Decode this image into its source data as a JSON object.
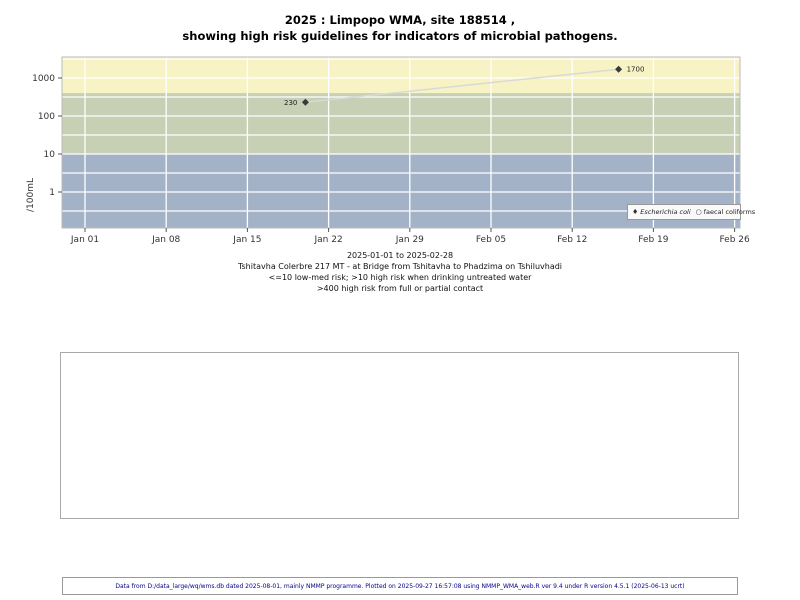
{
  "title": {
    "line1": "2025 : Limpopo WMA, site 188514 ,",
    "line2": "showing high risk guidelines for indicators of microbial pathogens."
  },
  "chart_data": {
    "type": "scatter",
    "title": "2025 : Limpopo WMA, site 188514 , showing high risk guidelines for indicators of microbial pathogens.",
    "xlabel": "",
    "ylabel": "/100mL",
    "y_scale": "log10",
    "y_ticks": [
      1,
      10,
      100,
      1000
    ],
    "y_domain": [
      0.11,
      3600
    ],
    "x_domain_dates": [
      "2024-12-30",
      "2025-02-26"
    ],
    "x_ticks": [
      {
        "label": "Jan 01",
        "day": 0
      },
      {
        "label": "Jan 08",
        "day": 7
      },
      {
        "label": "Jan 15",
        "day": 14
      },
      {
        "label": "Jan 22",
        "day": 21
      },
      {
        "label": "Jan 29",
        "day": 28
      },
      {
        "label": "Feb 05",
        "day": 35
      },
      {
        "label": "Feb 12",
        "day": 42
      },
      {
        "label": "Feb 19",
        "day": 49
      },
      {
        "label": "Feb 26",
        "day": 56
      }
    ],
    "gridlines_y": [
      0.316,
      1,
      3.16,
      10,
      31.6,
      100,
      316,
      1000,
      3162
    ],
    "grid_color": "#ffffff",
    "line_color": "#d9d9d9",
    "risk_bands": [
      {
        "name": "high-risk-contact",
        "from": 400,
        "to": 3600,
        "color": "#f7f3c4",
        "meaning": ">400 high risk from full or partial contact"
      },
      {
        "name": "high-risk-drinking",
        "from": 10,
        "to": 400,
        "color": "#c7cfb4",
        "meaning": ">10 high risk when drinking untreated water"
      },
      {
        "name": "low-med-risk",
        "from": 0.11,
        "to": 10,
        "color": "#a3b2c7",
        "meaning": "<=10 low-med risk"
      }
    ],
    "series": [
      {
        "name": "Escherichia coli",
        "marker": "diamond",
        "points": [
          {
            "date": "2025-01-20",
            "day": 19,
            "value": 230,
            "label": "230",
            "label_side": "left"
          },
          {
            "date": "2025-02-16",
            "day": 46,
            "value": 1700,
            "label": "1700",
            "label_side": "right"
          }
        ]
      },
      {
        "name": "faecal coliforms",
        "marker": "open-circle",
        "points": []
      }
    ],
    "legend_position": "bottom-right"
  },
  "legend": {
    "items": [
      {
        "glyph": "♦",
        "label": "Escherichia coli"
      },
      {
        "glyph": "○",
        "label": "faecal coliforms"
      }
    ]
  },
  "caption": {
    "lines": [
      "2025-01-01 to 2025-02-28",
      "Tshitavha Colerbre 217 MT - at Bridge from Tshitavha to Phadzima on Tshiluvhadi",
      "<=10 low-med risk; >10 high risk when drinking untreated water",
      ">400 high risk from full or partial contact"
    ]
  },
  "footer": "Data from D:/data_large/wq/wms.db dated 2025-08-01, mainly NMMP programme. Plotted on 2025-09-27 16:57:08 using NMMP_WMA_web.R ver 9.4 under R version 4.5.1 (2025-06-13 ucrt)"
}
